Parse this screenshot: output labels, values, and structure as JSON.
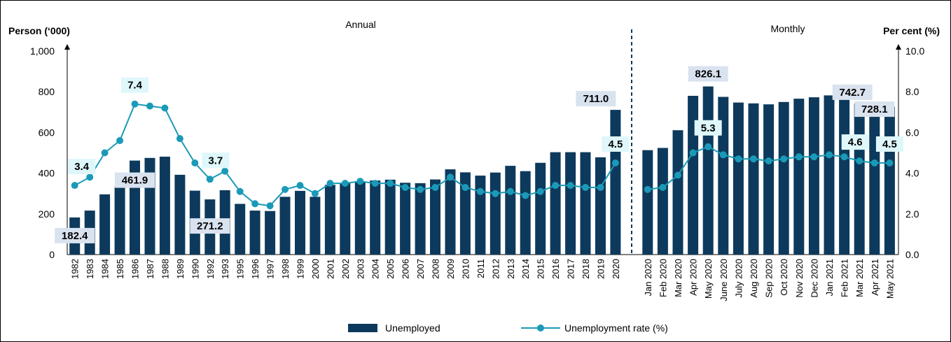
{
  "chart_data": {
    "type": "bar",
    "title": "",
    "section_labels": {
      "annual": "Annual",
      "monthly": "Monthly"
    },
    "left_axis": {
      "title": "Person (‘000)",
      "ylim": [
        0,
        1000
      ],
      "ticks": [
        "0",
        "200",
        "400",
        "600",
        "800",
        "1,000"
      ]
    },
    "right_axis": {
      "title": "Per cent (%)",
      "ylim": [
        0,
        10
      ],
      "ticks": [
        "0.0",
        "2.0",
        "4.0",
        "6.0",
        "8.0",
        "10.0"
      ]
    },
    "categories": [
      "1982",
      "1983",
      "1984",
      "1985",
      "1986",
      "1987",
      "1988",
      "1989",
      "1990",
      "1992",
      "1993",
      "1995",
      "1996",
      "1997",
      "1998",
      "1999",
      "2000",
      "2001",
      "2002",
      "2003",
      "2004",
      "2005",
      "2006",
      "2007",
      "2008",
      "2009",
      "2010",
      "2011",
      "2012",
      "2013",
      "2014",
      "2015",
      "2016",
      "2017",
      "2018",
      "2019",
      "2020",
      "Jan 2020",
      "Feb 2020",
      "Mar 2020",
      "Apr 2020",
      "May 2020",
      "June 2020",
      "July 2020",
      "Aug 2020",
      "Sep 2020",
      "Oct 2020",
      "Nov 2020",
      "Dec 2020",
      "Jan 2021",
      "Feb 2021",
      "Mar 2021",
      "Apr 2021",
      "May 2021"
    ],
    "annual_count": 37,
    "series": [
      {
        "name": "Unemployed",
        "kind": "bar",
        "axis": "left",
        "color": "#0d3a5c",
        "values": [
          182.4,
          216,
          296,
          334,
          461.9,
          475,
          481,
          392,
          314,
          271.2,
          316,
          249,
          216,
          214,
          284,
          313,
          284,
          343,
          351,
          360,
          364,
          368,
          353,
          351,
          369,
          419,
          404,
          388,
          403,
          436,
          410,
          451,
          503,
          503,
          503,
          478,
          711.0,
          513,
          524,
          611,
          780,
          826.1,
          775,
          747,
          743,
          738,
          750,
          766,
          773,
          782,
          778,
          742.7,
          728.1,
          726
        ]
      },
      {
        "name": "Unemployment rate (%)",
        "kind": "line",
        "axis": "right",
        "color": "#1b9ab8",
        "values": [
          3.4,
          3.8,
          5.0,
          5.6,
          7.4,
          7.3,
          7.2,
          5.7,
          4.5,
          3.7,
          4.1,
          3.1,
          2.5,
          2.4,
          3.2,
          3.4,
          3.0,
          3.5,
          3.5,
          3.6,
          3.5,
          3.5,
          3.3,
          3.2,
          3.3,
          3.8,
          3.3,
          3.1,
          3.0,
          3.1,
          2.9,
          3.1,
          3.4,
          3.4,
          3.3,
          3.3,
          4.5,
          3.2,
          3.3,
          3.9,
          5.0,
          5.3,
          4.9,
          4.7,
          4.7,
          4.6,
          4.7,
          4.8,
          4.8,
          4.9,
          4.8,
          4.6,
          4.5,
          4.5
        ]
      }
    ],
    "bar_annotations": [
      {
        "index": 0,
        "text": "182.4"
      },
      {
        "index": 4,
        "text": "461.9"
      },
      {
        "index": 9,
        "text": "271.2"
      },
      {
        "index": 36,
        "text": "711.0"
      },
      {
        "index": 41,
        "text": "826.1"
      },
      {
        "index": 51,
        "text": "742.7"
      },
      {
        "index": 52,
        "text": "728.1"
      }
    ],
    "rate_annotations": [
      {
        "index": 0,
        "text": "3.4"
      },
      {
        "index": 4,
        "text": "7.4"
      },
      {
        "index": 9,
        "text": "3.7"
      },
      {
        "index": 36,
        "text": "4.5"
      },
      {
        "index": 41,
        "text": "5.3"
      },
      {
        "index": 51,
        "text": "4.6"
      },
      {
        "index": 53,
        "text": "4.5"
      }
    ],
    "legend": {
      "position": "bottom",
      "entries": [
        "Unemployed",
        "Unemployment rate (%)"
      ]
    },
    "grid": false,
    "colors": {
      "bar": "#0d3a5c",
      "line": "#1b9ab8",
      "bar_label_bg": "#d9e3ef",
      "rate_label_bg": "#dff7fb",
      "divider": "#0d3a5c"
    }
  }
}
